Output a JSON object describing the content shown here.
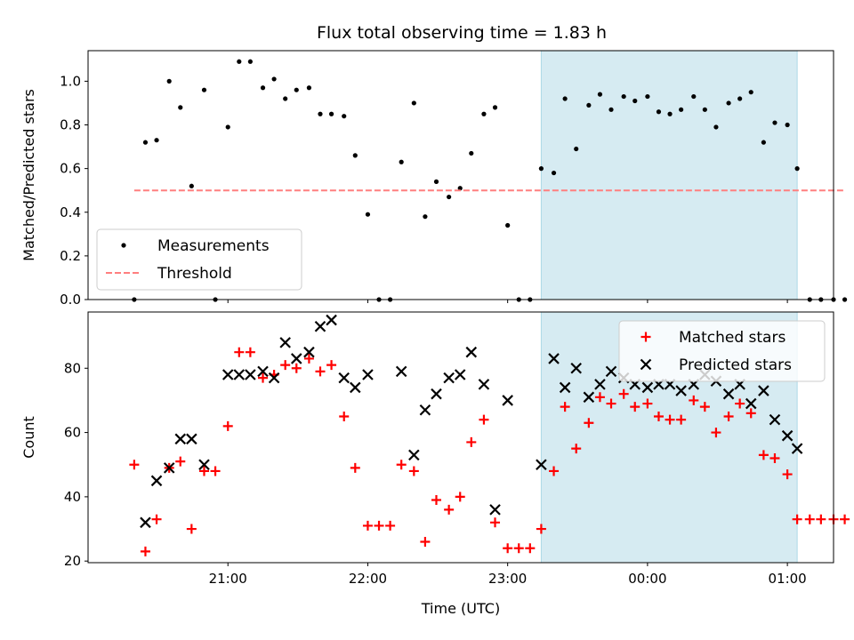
{
  "title": "Flux total observing time = 1.83 h",
  "colors": {
    "measurement": "#000000",
    "threshold": "#ff7f7f",
    "highlight": "#add8e6",
    "matched": "#ff0000",
    "predicted": "#000000"
  },
  "chart_data": [
    {
      "type": "scatter",
      "panel": "top",
      "ylabel": "Matched/Predicted stars",
      "xlabel": "",
      "x_unit": "hours since 20:00 UTC",
      "xlim": [
        20.0,
        25.33
      ],
      "ylim": [
        0.0,
        1.14
      ],
      "yticks": [
        0.0,
        0.2,
        0.4,
        0.6,
        0.8,
        1.0
      ],
      "yticklabels": [
        "0.0",
        "0.2",
        "0.4",
        "0.6",
        "0.8",
        "1.0"
      ],
      "legend_position": "lower-left",
      "grid": false,
      "highlight_span": [
        23.24,
        25.07
      ],
      "series": [
        {
          "name": "Measurements",
          "marker": "dot",
          "x": [
            20.33,
            20.41,
            20.49,
            20.58,
            20.66,
            20.74,
            20.83,
            20.91,
            21.0,
            21.08,
            21.16,
            21.25,
            21.33,
            21.41,
            21.49,
            21.58,
            21.66,
            21.74,
            21.83,
            21.91,
            22.0,
            22.08,
            22.16,
            22.24,
            22.33,
            22.41,
            22.49,
            22.58,
            22.66,
            22.74,
            22.83,
            22.91,
            23.0,
            23.08,
            23.16,
            23.24,
            23.33,
            23.41,
            23.49,
            23.58,
            23.66,
            23.74,
            23.83,
            23.91,
            24.0,
            24.08,
            24.16,
            24.24,
            24.33,
            24.41,
            24.49,
            24.58,
            24.66,
            24.74,
            24.83,
            24.91,
            25.0,
            25.07,
            25.16,
            25.24,
            25.33,
            25.41
          ],
          "y": [
            0.0,
            0.72,
            0.73,
            1.0,
            0.88,
            0.52,
            0.96,
            0.0,
            0.79,
            1.09,
            1.09,
            0.97,
            1.01,
            0.92,
            0.96,
            0.97,
            0.85,
            0.85,
            0.84,
            0.66,
            0.39,
            0.0,
            0.0,
            0.63,
            0.9,
            0.38,
            0.54,
            0.47,
            0.51,
            0.67,
            0.85,
            0.88,
            0.34,
            0.0,
            0.0,
            0.6,
            0.58,
            0.92,
            0.69,
            0.89,
            0.94,
            0.87,
            0.93,
            0.91,
            0.93,
            0.86,
            0.85,
            0.87,
            0.93,
            0.87,
            0.79,
            0.9,
            0.92,
            0.95,
            0.72,
            0.81,
            0.8,
            0.6,
            0.0,
            0.0,
            0.0,
            0.0
          ]
        },
        {
          "name": "Threshold",
          "marker": "dashed-line",
          "x": [
            20.33,
            25.41
          ],
          "y": [
            0.5,
            0.5
          ]
        }
      ]
    },
    {
      "type": "scatter",
      "panel": "bottom",
      "ylabel": "Count",
      "xlabel": "Time (UTC)",
      "x_unit": "hours since 20:00 UTC",
      "xlim": [
        20.0,
        25.33
      ],
      "ylim": [
        19.5,
        97.5
      ],
      "yticks": [
        20,
        40,
        60,
        80
      ],
      "yticklabels": [
        "20",
        "40",
        "60",
        "80"
      ],
      "xticks": [
        21.0,
        22.0,
        23.0,
        24.0,
        25.0
      ],
      "xticklabels": [
        "21:00",
        "22:00",
        "23:00",
        "00:00",
        "01:00"
      ],
      "legend_position": "upper-right",
      "grid": false,
      "highlight_span": [
        23.24,
        25.07
      ],
      "series": [
        {
          "name": "Matched stars",
          "marker": "plus",
          "x": [
            20.33,
            20.41,
            20.49,
            20.58,
            20.66,
            20.74,
            20.83,
            20.91,
            21.0,
            21.08,
            21.16,
            21.25,
            21.33,
            21.41,
            21.49,
            21.58,
            21.66,
            21.74,
            21.83,
            21.91,
            22.0,
            22.08,
            22.16,
            22.24,
            22.33,
            22.41,
            22.49,
            22.58,
            22.66,
            22.74,
            22.83,
            22.91,
            23.0,
            23.08,
            23.16,
            23.24,
            23.33,
            23.41,
            23.49,
            23.58,
            23.66,
            23.74,
            23.83,
            23.91,
            24.0,
            24.08,
            24.16,
            24.24,
            24.33,
            24.41,
            24.49,
            24.58,
            24.66,
            24.74,
            24.83,
            24.91,
            25.0,
            25.07,
            25.16,
            25.24,
            25.33,
            25.41
          ],
          "y": [
            50,
            23,
            33,
            49,
            51,
            30,
            48,
            48,
            62,
            85,
            85,
            77,
            78,
            81,
            80,
            83,
            79,
            81,
            65,
            49,
            31,
            31,
            31,
            50,
            48,
            26,
            39,
            36,
            40,
            57,
            64,
            32,
            24,
            24,
            24,
            30,
            48,
            68,
            55,
            63,
            71,
            69,
            72,
            68,
            69,
            65,
            64,
            64,
            70,
            68,
            60,
            65,
            69,
            66,
            53,
            52,
            47,
            33,
            33,
            33,
            33,
            33
          ]
        },
        {
          "name": "Predicted stars",
          "marker": "x",
          "x": [
            20.41,
            20.49,
            20.58,
            20.66,
            20.74,
            20.83,
            21.0,
            21.08,
            21.16,
            21.25,
            21.33,
            21.41,
            21.49,
            21.58,
            21.66,
            21.74,
            21.83,
            21.91,
            22.0,
            22.24,
            22.33,
            22.41,
            22.49,
            22.58,
            22.66,
            22.74,
            22.83,
            22.91,
            23.0,
            23.24,
            23.33,
            23.41,
            23.49,
            23.58,
            23.66,
            23.74,
            23.83,
            23.91,
            24.0,
            24.08,
            24.16,
            24.24,
            24.33,
            24.41,
            24.49,
            24.58,
            24.66,
            24.74,
            24.83,
            24.91,
            25.0,
            25.07
          ],
          "y": [
            32,
            45,
            49,
            58,
            58,
            50,
            78,
            78,
            78,
            79,
            77,
            88,
            83,
            85,
            93,
            95,
            77,
            74,
            78,
            79,
            53,
            67,
            72,
            77,
            78,
            85,
            75,
            36,
            70,
            50,
            83,
            74,
            80,
            71,
            75,
            79,
            77,
            75,
            74,
            75,
            75,
            73,
            75,
            78,
            76,
            72,
            75,
            69,
            73,
            64,
            59,
            55
          ]
        }
      ]
    }
  ]
}
